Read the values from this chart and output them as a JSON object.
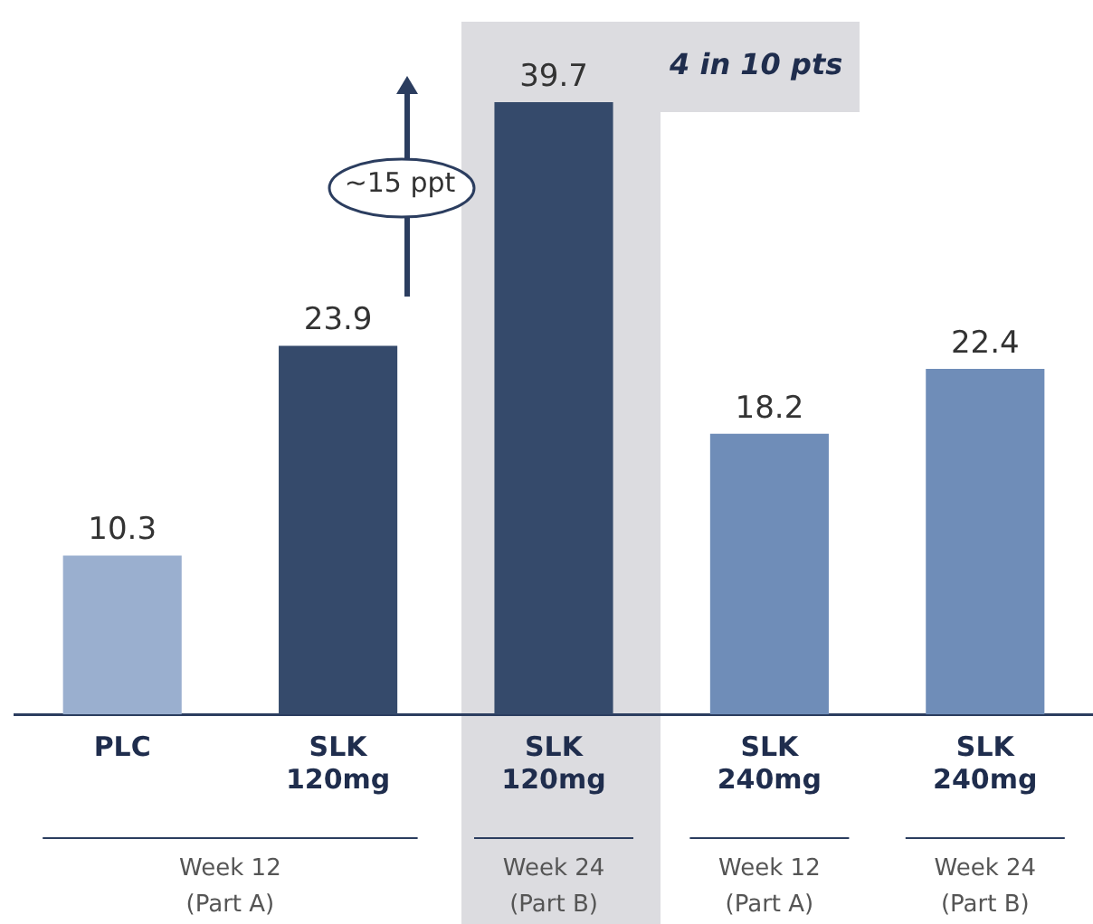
{
  "chart_data": {
    "type": "bar",
    "categories": [
      "PLC",
      "SLK 120mg",
      "SLK 120mg",
      "SLK 240mg",
      "SLK 240mg"
    ],
    "values": [
      10.3,
      23.9,
      39.7,
      18.2,
      22.4
    ],
    "colors": [
      "#9aafcf",
      "#354a6b",
      "#354a6b",
      "#6f8db8",
      "#6f8db8"
    ],
    "data_labels": true,
    "grid": false,
    "legend": false,
    "annotations": [
      "4 in 10 pts",
      "~15 ppt",
      "Week 12 (Part A)",
      "Week 24 (Part B)",
      "Week 12 (Part A)",
      "Week 24 (Part B)"
    ]
  }
}
